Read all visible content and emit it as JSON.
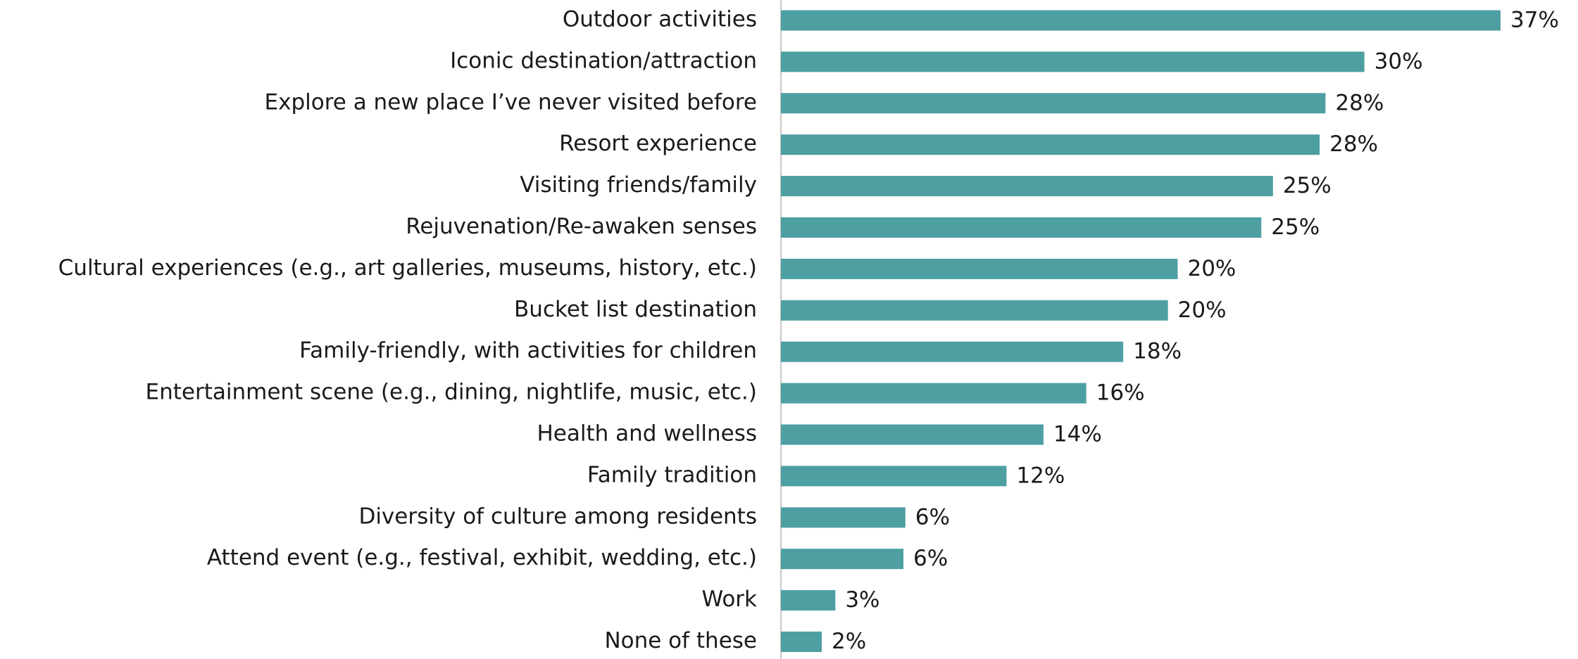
{
  "chart_data": {
    "type": "bar",
    "orientation": "horizontal",
    "color": "#4e9fa2",
    "categories": [
      "Outdoor activities",
      "Iconic destination/attraction",
      "Explore a new place I’ve never visited before",
      "Resort experience",
      "Visiting friends/family",
      "Rejuvenation/Re-awaken senses",
      "Cultural experiences (e.g., art galleries, museums, history, etc.)",
      "Bucket list destination",
      "Family-friendly, with activities for children",
      "Entertainment scene (e.g., dining, nightlife, music, etc.)",
      "Health and wellness",
      "Family tradition",
      "Diversity of culture among residents",
      "Attend event (e.g., festival, exhibit, wedding, etc.)",
      "Work",
      "None of these"
    ],
    "values": [
      37,
      30,
      28,
      27.7,
      25.3,
      24.7,
      20.4,
      19.9,
      17.6,
      15.7,
      13.5,
      11.6,
      6.4,
      6.3,
      2.8,
      2.1
    ],
    "value_labels": [
      "37%",
      "30%",
      "28%",
      "28%",
      "25%",
      "25%",
      "20%",
      "20%",
      "18%",
      "16%",
      "14%",
      "12%",
      "6%",
      "6%",
      "3%",
      "2%"
    ]
  }
}
